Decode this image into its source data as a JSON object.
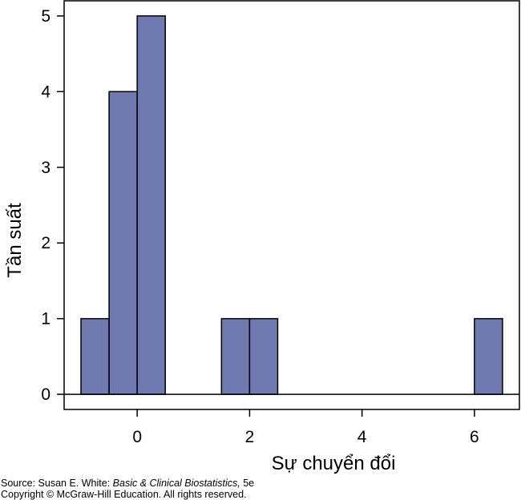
{
  "chart_data": {
    "type": "histogram",
    "bins": [
      {
        "start": -1.0,
        "end": -0.5,
        "count": 1
      },
      {
        "start": -0.5,
        "end": 0.0,
        "count": 4
      },
      {
        "start": 0.0,
        "end": 0.5,
        "count": 5
      },
      {
        "start": 1.5,
        "end": 2.0,
        "count": 1
      },
      {
        "start": 2.0,
        "end": 2.5,
        "count": 1
      },
      {
        "start": 6.0,
        "end": 6.5,
        "count": 1
      }
    ],
    "xlabel": "Sự chuyển đổi",
    "ylabel": "Tần suất",
    "xlim": [
      -1.3,
      6.8
    ],
    "ylim": [
      -0.2,
      5.2
    ],
    "x_ticks": [
      0,
      2,
      4,
      6
    ],
    "y_ticks": [
      0,
      1,
      2,
      3,
      4,
      5
    ],
    "bar_color": "#6f7bb0",
    "grid": false
  },
  "caption": {
    "source_prefix": "Source: Susan E. White: ",
    "source_title": "Basic & Clinical Biostatistics,",
    "source_suffix": " 5e",
    "copyright": "Copyright © McGraw-Hill Education. All rights reserved."
  }
}
